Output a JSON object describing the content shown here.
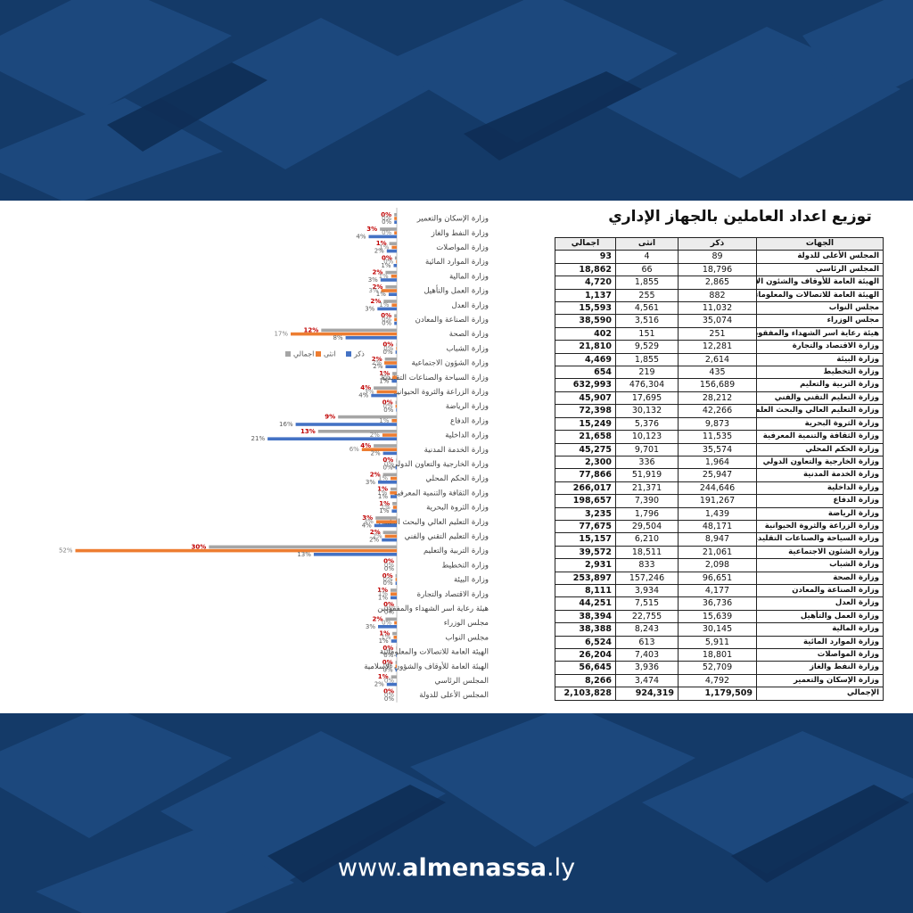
{
  "title": "توزيع اعداد العاملين  بالجهاز الإداري",
  "table": {
    "header": [
      "الجهات",
      "ذكر",
      "انثى",
      "اجمالي"
    ],
    "rows": [
      [
        "المجلس الأعلى للدولة",
        "89",
        "4",
        "93"
      ],
      [
        "المجلس الرئاسي",
        "18,796",
        "66",
        "18,862"
      ],
      [
        "الهيئة العامة للأوقاف والشئون الإسلامية",
        "2,865",
        "1,855",
        "4,720"
      ],
      [
        "الهيئة العامة للاتصالات والمعلوماتية",
        "882",
        "255",
        "1,137"
      ],
      [
        "مجلس النواب",
        "11,032",
        "4,561",
        "15,593"
      ],
      [
        "مجلس الوزراء",
        "35,074",
        "3,516",
        "38,590"
      ],
      [
        "هيئة رعاية اسر الشهداء والمفقودين",
        "251",
        "151",
        "402"
      ],
      [
        "وزارة الاقتصاد والتجارة",
        "12,281",
        "9,529",
        "21,810"
      ],
      [
        "وزارة البيئة",
        "2,614",
        "1,855",
        "4,469"
      ],
      [
        "وزارة التخطيط",
        "435",
        "219",
        "654"
      ],
      [
        "وزارة التربية والتعليم",
        "156,689",
        "476,304",
        "632,993"
      ],
      [
        "وزارة التعليم التقني والفني",
        "28,212",
        "17,695",
        "45,907"
      ],
      [
        "وزارة التعليم العالي والبحث العلمي",
        "42,266",
        "30,132",
        "72,398"
      ],
      [
        "وزارة الثروة البحرية",
        "9,873",
        "5,376",
        "15,249"
      ],
      [
        "وزارة الثقافة والتنمية المعرفية",
        "11,535",
        "10,123",
        "21,658"
      ],
      [
        "وزارة الحكم المحلي",
        "35,574",
        "9,701",
        "45,275"
      ],
      [
        "وزارة الخارجية والتعاون الدولي",
        "1,964",
        "336",
        "2,300"
      ],
      [
        "وزارة الخدمة المدنية",
        "25,947",
        "51,919",
        "77,866"
      ],
      [
        "وزارة الداخلية",
        "244,646",
        "21,371",
        "266,017"
      ],
      [
        "وزارة الدفاع",
        "191,267",
        "7,390",
        "198,657"
      ],
      [
        "وزارة الرياضة",
        "1,439",
        "1,796",
        "3,235"
      ],
      [
        "وزارة الزراعة والثروة الحيوانية",
        "48,171",
        "29,504",
        "77,675"
      ],
      [
        "وزارة السياحة والصناعات التقليدية",
        "8,947",
        "6,210",
        "15,157"
      ],
      [
        "وزارة الشئون الاجتماعية",
        "21,061",
        "18,511",
        "39,572"
      ],
      [
        "وزارة الشباب",
        "2,098",
        "833",
        "2,931"
      ],
      [
        "وزارة الصحة",
        "96,651",
        "157,246",
        "253,897"
      ],
      [
        "وزارة الصناعة والمعادن",
        "4,177",
        "3,934",
        "8,111"
      ],
      [
        "وزارة العدل",
        "36,736",
        "7,515",
        "44,251"
      ],
      [
        "وزارة العمل والتأهيل",
        "15,639",
        "22,755",
        "38,394"
      ],
      [
        "وزارة المالية",
        "30,145",
        "8,243",
        "38,388"
      ],
      [
        "وزارة الموارد المائية",
        "5,911",
        "613",
        "6,524"
      ],
      [
        "وزارة المواصلات",
        "18,801",
        "7,403",
        "26,204"
      ],
      [
        "وزارة النفط والغاز",
        "52,709",
        "3,936",
        "56,645"
      ],
      [
        "وزارة الإسكان والتعمير",
        "4,792",
        "3,474",
        "8,266"
      ],
      [
        "الإجمالي",
        "1,179,509",
        "924,319",
        "2,103,828"
      ]
    ]
  },
  "chart_data": {
    "type": "hbar",
    "x_reversed": true,
    "xlim": [
      0,
      55
    ],
    "legend": "top-right",
    "categories": [
      "وزارة الإسكان والتعمير",
      "وزارة النفط والغاز",
      "وزارة المواصلات",
      "وزارة الموارد المائية",
      "وزارة المالية",
      "وزارة العمل والتأهيل",
      "وزارة العدل",
      "وزارة الصناعة والمعادن",
      "وزارة الصحة",
      "وزارة الشباب",
      "وزارة الشؤون الاجتماعية",
      "وزارة السياحة والصناعات التقليدية",
      "وزارة الزراعة والثروة الحيوانية",
      "وزارة الرياضة",
      "وزارة الدفاع",
      "وزارة الداخلية",
      "وزارة الخدمة المدنية",
      "وزارة الخارجية والتعاون الدولي",
      "وزارة الحكم المحلي",
      "وزارة الثقافة والتنمية المعرفية",
      "وزارة الثروة البحرية",
      "وزارة التعليم العالي والبحث العلمي",
      "وزارة التعليم التقني والفني",
      "وزارة التربية والتعليم",
      "وزارة التخطيط",
      "وزارة البيئة",
      "وزارة الاقتصاد والتجارة",
      "هيئة رعاية اسر الشهداء والمفقودين",
      "مجلس الوزراء",
      "مجلس النواب",
      "الهيئة العامة للاتصالات والمعلوماتية",
      "الهيئة العامة للأوقاف والشؤون الإسلامية",
      "المجلس الرئاسي",
      "المجلس الأعلى للدولة"
    ],
    "series": [
      {
        "name": "اجمالي",
        "color": "#a5a5a5",
        "label_color": "#c00000",
        "values": [
          0.4,
          2.7,
          1.2,
          0.3,
          1.8,
          1.8,
          2.1,
          0.4,
          12.1,
          0.1,
          1.9,
          0.7,
          3.7,
          0.2,
          9.4,
          12.6,
          3.7,
          0.1,
          2.2,
          1.0,
          0.7,
          3.4,
          2.2,
          30.1,
          0.0,
          0.2,
          1.0,
          0.0,
          1.8,
          0.7,
          0.1,
          0.2,
          0.9,
          0.0
        ],
        "value_labels": [
          "0%",
          "3%",
          "1%",
          "0%",
          "2%",
          "2%",
          "2%",
          "0%",
          "12%",
          "0%",
          "2%",
          "1%",
          "4%",
          "0%",
          "9%",
          "13%",
          "4%",
          "0%",
          "2%",
          "1%",
          "1%",
          "3%",
          "2%",
          "30%",
          "0%",
          "0%",
          "1%",
          "0%",
          "2%",
          "1%",
          "0%",
          "0%",
          "1%",
          "0%"
        ]
      },
      {
        "name": "انثى",
        "color": "#ed7d31",
        "label_color": "#7f7f7f",
        "values": [
          0.4,
          0.4,
          0.8,
          0.1,
          0.9,
          2.5,
          0.8,
          0.4,
          17.0,
          0.1,
          2.0,
          0.7,
          3.2,
          0.2,
          0.8,
          2.3,
          5.6,
          0.0,
          1.0,
          1.1,
          0.6,
          3.3,
          1.9,
          51.5,
          0.0,
          0.2,
          1.0,
          0.0,
          0.4,
          0.5,
          0.0,
          0.2,
          0.0,
          0.0
        ],
        "value_labels": [
          "0%",
          "0%",
          "1%",
          "0%",
          "1%",
          "3%",
          "1%",
          "0%",
          "17%",
          "0%",
          "2%",
          "1%",
          "3%",
          "0%",
          "1%",
          "2%",
          "6%",
          "0%",
          "1%",
          "1%",
          "1%",
          "3%",
          "2%",
          "52%",
          "0%",
          "0%",
          "1%",
          "0%",
          "0%",
          "1%",
          "0%",
          "0%",
          "0%",
          "0%"
        ]
      },
      {
        "name": "ذكر",
        "color": "#4472c4",
        "label_color": "#595959",
        "values": [
          0.4,
          4.5,
          1.6,
          0.5,
          2.6,
          1.3,
          3.1,
          0.4,
          8.2,
          0.2,
          1.8,
          0.8,
          4.1,
          0.1,
          16.2,
          20.7,
          2.2,
          0.2,
          3.0,
          1.0,
          0.8,
          3.6,
          2.4,
          13.3,
          0.0,
          0.2,
          1.0,
          0.0,
          3.0,
          0.9,
          0.1,
          0.2,
          1.6,
          0.0
        ],
        "value_labels": [
          "0%",
          "4%",
          "2%",
          "1%",
          "3%",
          "1%",
          "3%",
          "0%",
          "8%",
          "0%",
          "2%",
          "1%",
          "4%",
          "0%",
          "16%",
          "21%",
          "2%",
          "0%",
          "3%",
          "1%",
          "1%",
          "4%",
          "2%",
          "13%",
          "0%",
          "0%",
          "1%",
          "0%",
          "3%",
          "1%",
          "0%",
          "0%",
          "2%",
          "0%"
        ]
      }
    ]
  },
  "footer": {
    "prefix": "www.",
    "brand": "almenassa",
    "suffix": ".ly"
  }
}
